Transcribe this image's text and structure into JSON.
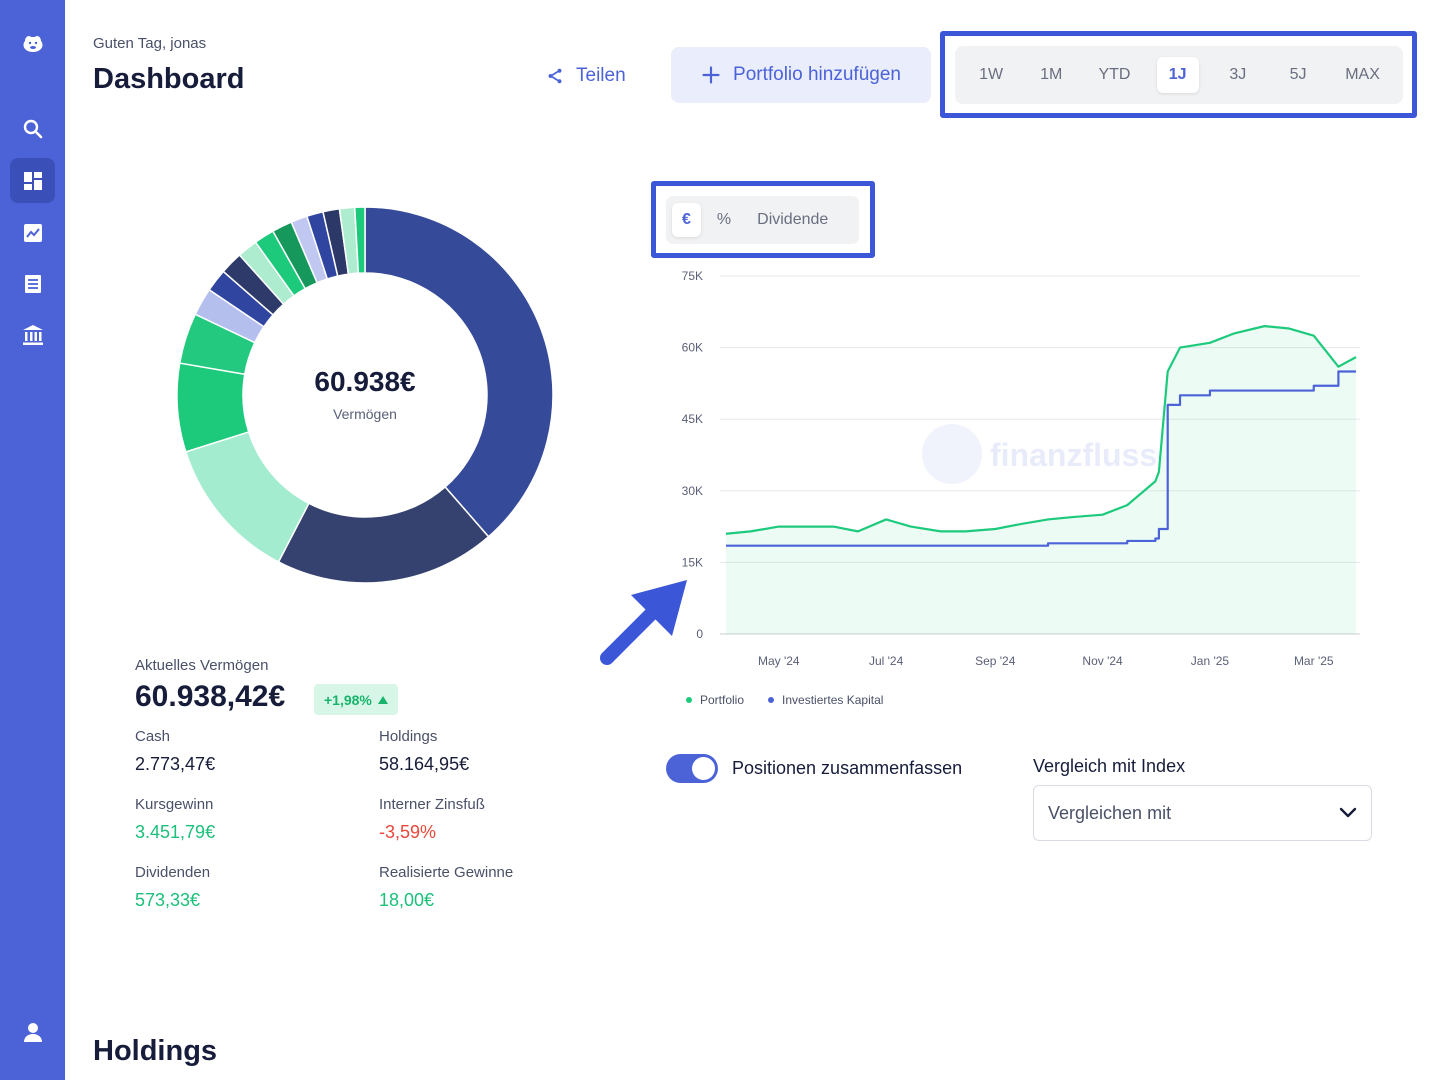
{
  "sidebar": {
    "items": [
      {
        "icon": "hippo-logo-icon"
      },
      {
        "icon": "search-icon"
      },
      {
        "icon": "dashboard-icon",
        "active": true
      },
      {
        "icon": "chart-icon"
      },
      {
        "icon": "document-list-icon"
      },
      {
        "icon": "bank-icon"
      },
      {
        "icon": "user-icon"
      }
    ]
  },
  "header": {
    "greeting": "Guten Tag, jonas",
    "title": "Dashboard",
    "share_label": "Teilen",
    "add_portfolio_label": "Portfolio hinzufügen"
  },
  "time_ranges": {
    "options": [
      "1W",
      "1M",
      "YTD",
      "1J",
      "3J",
      "5J",
      "MAX"
    ],
    "selected": "1J"
  },
  "chart_modes": {
    "options": [
      "€",
      "%",
      "Dividende"
    ],
    "selected": "€"
  },
  "donut": {
    "center_value": "60.938€",
    "center_label": "Vermögen",
    "slices": [
      {
        "value": 35.5,
        "color": "#364a9a"
      },
      {
        "value": 17.5,
        "color": "#354270"
      },
      {
        "value": 11.5,
        "color": "#a3ecd0"
      },
      {
        "value": 7.0,
        "color": "#1dca7c"
      },
      {
        "value": 4.0,
        "color": "#22c97f"
      },
      {
        "value": 2.2,
        "color": "#b4bfee"
      },
      {
        "value": 1.8,
        "color": "#2f45a0"
      },
      {
        "value": 1.8,
        "color": "#2d3a6a"
      },
      {
        "value": 1.6,
        "color": "#aeeccf"
      },
      {
        "value": 1.6,
        "color": "#1dca7c"
      },
      {
        "value": 1.6,
        "color": "#16985d"
      },
      {
        "value": 1.3,
        "color": "#c0c7f0"
      },
      {
        "value": 1.3,
        "color": "#2f45a0"
      },
      {
        "value": 1.3,
        "color": "#2b3868"
      },
      {
        "value": 1.2,
        "color": "#aeeccf"
      },
      {
        "value": 0.8,
        "color": "#1dca7c"
      }
    ]
  },
  "summary": {
    "current_label": "Aktuelles Vermögen",
    "current_value": "60.938,42€",
    "change_badge": "+1,98%",
    "cash_label": "Cash",
    "cash_value": "2.773,47€",
    "holdings_label": "Holdings",
    "holdings_value": "58.164,95€",
    "kursgewinn_label": "Kursgewinn",
    "kursgewinn_value": "3.451,79€",
    "zinsfuss_label": "Interner Zinsfuß",
    "zinsfuss_value": "-3,59%",
    "dividenden_label": "Dividenden",
    "dividenden_value": "573,33€",
    "realisiert_label": "Realisierte Gewinne",
    "realisiert_value": "18,00€"
  },
  "chart_data": {
    "type": "line",
    "watermark": "finanzfluss",
    "y_ticks": [
      "75K",
      "60K",
      "45K",
      "30K",
      "15K",
      "0"
    ],
    "x_ticks": [
      "May '24",
      "Jul '24",
      "Sep '24",
      "Nov '24",
      "Jan '25",
      "Mar '25"
    ],
    "ylim": [
      0,
      75000
    ],
    "x": [
      "2024-04-01",
      "2024-04-15",
      "2024-05-01",
      "2024-05-15",
      "2024-06-01",
      "2024-06-15",
      "2024-07-01",
      "2024-07-15",
      "2024-08-01",
      "2024-08-15",
      "2024-09-01",
      "2024-09-15",
      "2024-10-01",
      "2024-10-15",
      "2024-11-01",
      "2024-11-15",
      "2024-12-01",
      "2024-12-03",
      "2024-12-08",
      "2024-12-15",
      "2025-01-01",
      "2025-01-15",
      "2025-02-01",
      "2025-02-15",
      "2025-03-01",
      "2025-03-15",
      "2025-03-25"
    ],
    "series": [
      {
        "name": "Portfolio",
        "color": "#1dca7c",
        "values": [
          21000,
          21500,
          22500,
          22500,
          22500,
          21500,
          24000,
          22500,
          21500,
          21500,
          22000,
          23000,
          24000,
          24500,
          25000,
          27000,
          32000,
          34000,
          55000,
          60000,
          61000,
          63000,
          64500,
          64000,
          62500,
          56000,
          58000
        ]
      },
      {
        "name": "Investiertes Kapital",
        "color": "#4c63d8",
        "values": [
          18500,
          18500,
          18500,
          18500,
          18500,
          18500,
          18500,
          18500,
          18500,
          18500,
          18500,
          18500,
          19000,
          19000,
          19000,
          19500,
          20000,
          22000,
          48000,
          50000,
          51000,
          51000,
          51000,
          51000,
          52000,
          55000,
          55000
        ]
      }
    ]
  },
  "controls": {
    "toggle_label": "Positionen zusammenfassen",
    "compare_label": "Vergleich mit Index",
    "compare_placeholder": "Vergleichen mit"
  },
  "holdings": {
    "title": "Holdings"
  }
}
